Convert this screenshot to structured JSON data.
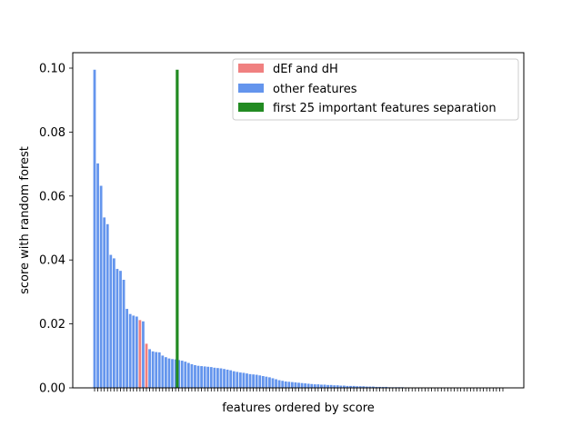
{
  "chart_data": {
    "type": "bar",
    "xlabel": "features ordered by score",
    "ylabel": "score with random forest",
    "ylim": [
      0,
      0.1
    ],
    "yticks": [
      "0.00",
      "0.02",
      "0.04",
      "0.06",
      "0.08",
      "0.10"
    ],
    "xticks_labeled": false,
    "colors": {
      "other": "#6495ED",
      "highlight": "#F08080",
      "separator": "#228B22"
    },
    "legend": {
      "position": "upper right",
      "entries": [
        {
          "label": "dEf and dH",
          "color": "#F08080"
        },
        {
          "label": "other features",
          "color": "#6495ED"
        },
        {
          "label": "first 25 important features separation",
          "color": "#228B22"
        }
      ]
    },
    "separator": {
      "after_rank": 25,
      "value": 0.0995
    },
    "highlighted_ranks": [
      14,
      16
    ],
    "values": [
      0.0995,
      0.0702,
      0.0632,
      0.0533,
      0.0512,
      0.0416,
      0.0405,
      0.0372,
      0.0366,
      0.0338,
      0.0247,
      0.0231,
      0.0226,
      0.0223,
      0.0212,
      0.0208,
      0.0138,
      0.0121,
      0.0114,
      0.0112,
      0.0111,
      0.0101,
      0.0096,
      0.0092,
      0.009,
      0.0089,
      0.0087,
      0.0085,
      0.0082,
      0.0078,
      0.0074,
      0.0071,
      0.0069,
      0.0068,
      0.0067,
      0.0066,
      0.0065,
      0.0063,
      0.0062,
      0.0061,
      0.0059,
      0.0057,
      0.0055,
      0.0052,
      0.005,
      0.0048,
      0.0047,
      0.0045,
      0.0043,
      0.0042,
      0.0041,
      0.0039,
      0.0037,
      0.0035,
      0.0033,
      0.003,
      0.0027,
      0.0024,
      0.0022,
      0.002,
      0.0019,
      0.0018,
      0.0017,
      0.0016,
      0.0015,
      0.0014,
      0.0013,
      0.0012,
      0.0011,
      0.0011,
      0.001,
      0.001,
      0.0009,
      0.0009,
      0.0008,
      0.0008,
      0.0007,
      0.0007,
      0.0006,
      0.0006,
      0.0006,
      0.0005,
      0.0005,
      0.0005,
      0.0004,
      0.0004,
      0.0004,
      0.0003,
      0.0003,
      0.0003,
      0.0003,
      0.0002,
      0.0002,
      0.0002,
      0.0002,
      0.0002,
      0.0001,
      0.0001,
      0.0001,
      0.0001,
      0.0001,
      0.0001,
      0.0001,
      0.0001,
      0.0001,
      0.0001,
      0.0001,
      0.0001,
      0.0001,
      0.0001,
      0.0001,
      0.0001,
      0.0,
      0.0,
      0.0,
      0.0,
      0.0,
      0.0,
      0.0,
      0.0,
      0.0,
      0.0,
      0.0,
      0.0,
      0.0,
      0.0,
      0.0
    ]
  }
}
